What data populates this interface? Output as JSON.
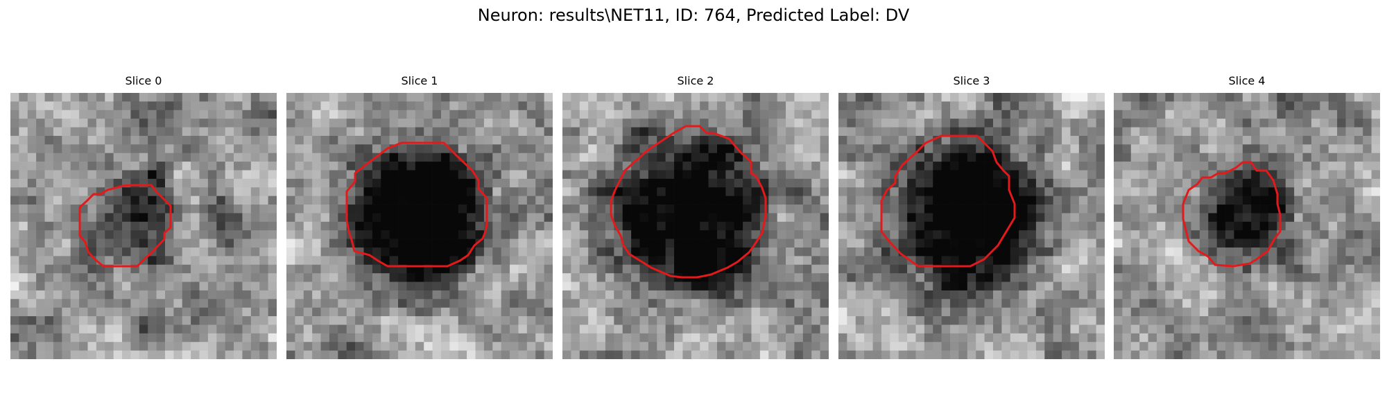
{
  "title": "Neuron: results\\NET11, ID: 764, Predicted Label: DV",
  "contour_color": "#e31a1c",
  "panels": [
    {
      "label": "Slice 0",
      "texture_seed": 11,
      "dark_blob_strength": 0.25,
      "dark_spot": true
    },
    {
      "label": "Slice 1",
      "texture_seed": 23,
      "dark_blob_strength": 0.75,
      "dark_spot": false
    },
    {
      "label": "Slice 2",
      "texture_seed": 37,
      "dark_blob_strength": 0.7,
      "dark_spot": false
    },
    {
      "label": "Slice 3",
      "texture_seed": 41,
      "dark_blob_strength": 0.72,
      "dark_spot": false
    },
    {
      "label": "Slice 4",
      "texture_seed": 53,
      "dark_blob_strength": 0.55,
      "dark_spot": false
    }
  ]
}
